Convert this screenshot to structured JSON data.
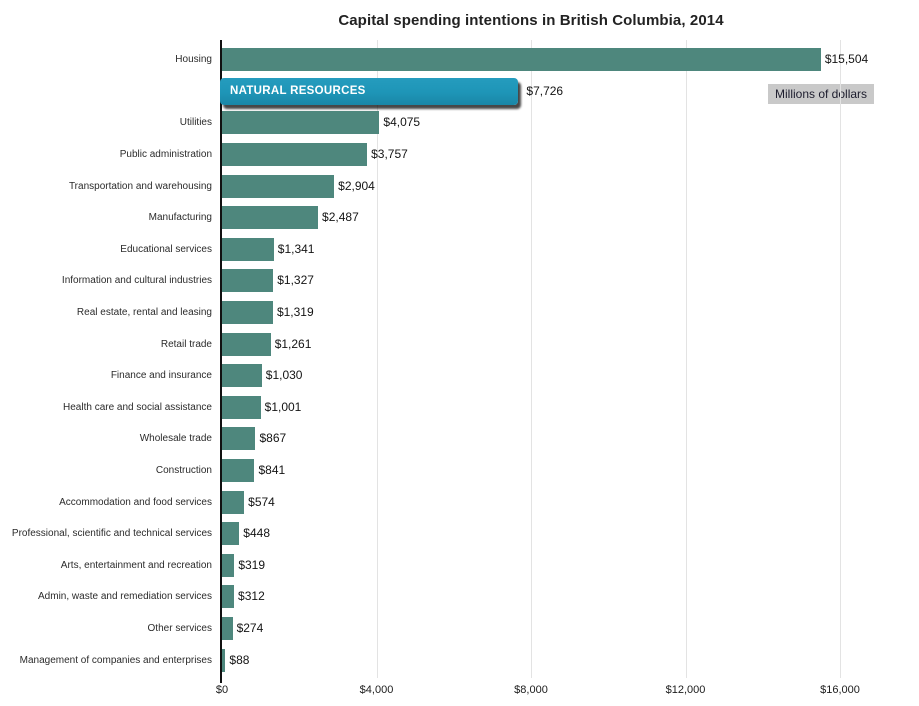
{
  "title": "Capital spending intentions in British Columbia, 2014",
  "units_badge": "Millions of dollars",
  "chart_data": {
    "type": "bar",
    "orientation": "horizontal",
    "title": "Capital spending intentions in British Columbia, 2014",
    "units_note": "Millions of dollars",
    "xlabel": "",
    "ylabel": "",
    "xlim": [
      0,
      16000
    ],
    "grid": true,
    "legend": "none",
    "x_ticks": [
      0,
      4000,
      8000,
      12000,
      16000
    ],
    "x_tick_labels": [
      "$0",
      "$4,000",
      "$8,000",
      "$12,000",
      "$16,000"
    ],
    "bars": [
      {
        "category": "Housing",
        "value": 15504,
        "label": "$15,504",
        "highlighted": false
      },
      {
        "category": "Natural resources",
        "display_category": "NATURAL RESOURCES",
        "value": 7726,
        "label": "$7,726",
        "highlighted": true
      },
      {
        "category": "Utilities",
        "value": 4075,
        "label": "$4,075",
        "highlighted": false
      },
      {
        "category": "Public administration",
        "value": 3757,
        "label": "$3,757",
        "highlighted": false
      },
      {
        "category": "Transportation and warehousing",
        "value": 2904,
        "label": "$2,904",
        "highlighted": false
      },
      {
        "category": "Manufacturing",
        "value": 2487,
        "label": "$2,487",
        "highlighted": false
      },
      {
        "category": "Educational services",
        "value": 1341,
        "label": "$1,341",
        "highlighted": false
      },
      {
        "category": "Information and cultural industries",
        "value": 1327,
        "label": "$1,327",
        "highlighted": false
      },
      {
        "category": "Real estate, rental and leasing",
        "value": 1319,
        "label": "$1,319",
        "highlighted": false
      },
      {
        "category": "Retail trade",
        "value": 1261,
        "label": "$1,261",
        "highlighted": false
      },
      {
        "category": "Finance and insurance",
        "value": 1030,
        "label": "$1,030",
        "highlighted": false
      },
      {
        "category": "Health care and social assistance",
        "value": 1001,
        "label": "$1,001",
        "highlighted": false
      },
      {
        "category": "Wholesale trade",
        "value": 867,
        "label": "$867",
        "highlighted": false
      },
      {
        "category": "Construction",
        "value": 841,
        "label": "$841",
        "highlighted": false
      },
      {
        "category": "Accommodation and food services",
        "value": 574,
        "label": "$574",
        "highlighted": false
      },
      {
        "category": "Professional, scientific and technical services",
        "value": 448,
        "label": "$448",
        "highlighted": false
      },
      {
        "category": "Arts, entertainment and recreation",
        "value": 319,
        "label": "$319",
        "highlighted": false
      },
      {
        "category": "Admin, waste and remediation services",
        "value": 312,
        "label": "$312",
        "highlighted": false
      },
      {
        "category": "Other services",
        "value": 274,
        "label": "$274",
        "highlighted": false
      },
      {
        "category": "Management of companies and enterprises",
        "value": 88,
        "label": "$88",
        "highlighted": false
      }
    ],
    "colors": {
      "bar": "#4E877D",
      "highlight_bar": "#1E95B7",
      "highlight_text": "#FFFFFF",
      "grid": "#E3E3E3",
      "axis": "#111111",
      "units_badge_bg": "#C9C9C9",
      "value_text": "#141414",
      "category_text": "#2B2B2B"
    }
  }
}
